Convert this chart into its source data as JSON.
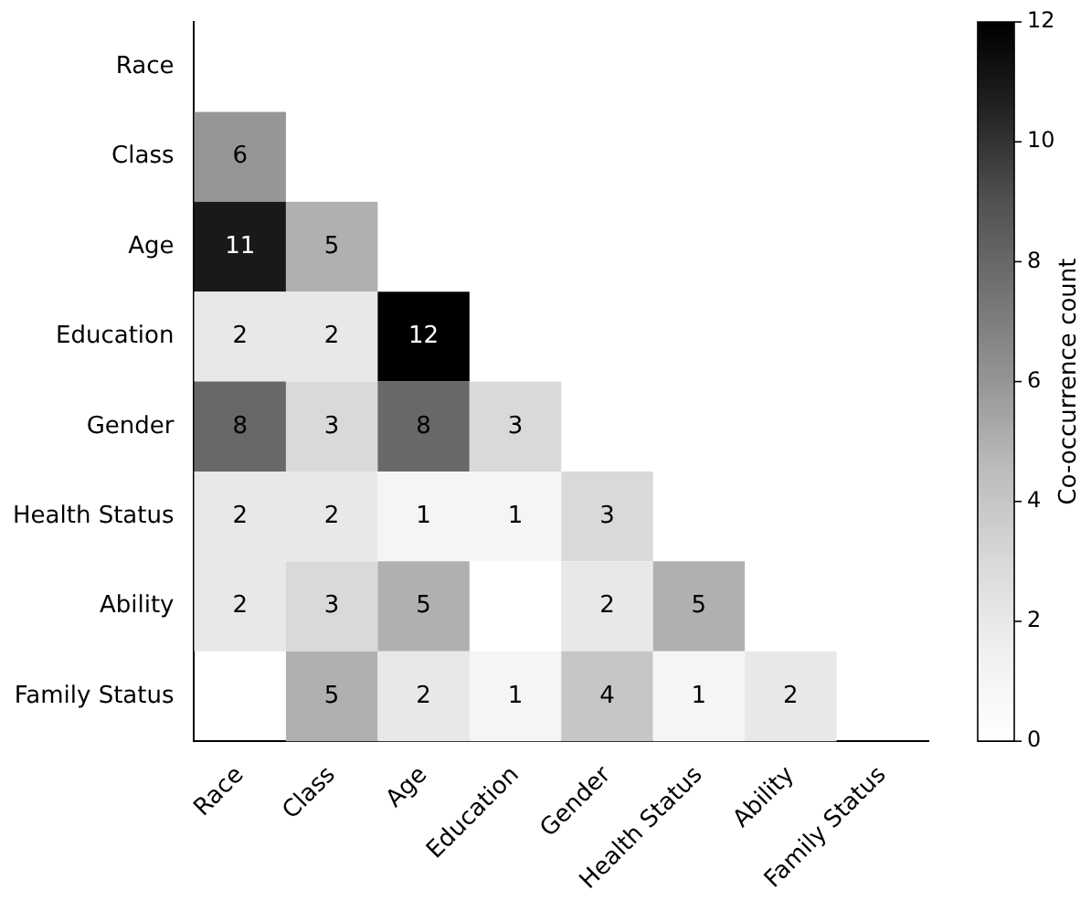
{
  "chart_data": {
    "type": "heatmap",
    "categories": [
      "Race",
      "Class",
      "Age",
      "Education",
      "Gender",
      "Health Status",
      "Ability",
      "Family Status"
    ],
    "y_categories": [
      "Race",
      "Class",
      "Age",
      "Education",
      "Gender",
      "Health Status",
      "Ability",
      "Family Status"
    ],
    "cells": [
      [
        null,
        null,
        null,
        null,
        null,
        null,
        null,
        null
      ],
      [
        6,
        null,
        null,
        null,
        null,
        null,
        null,
        null
      ],
      [
        11,
        5,
        null,
        null,
        null,
        null,
        null,
        null
      ],
      [
        2,
        2,
        12,
        null,
        null,
        null,
        null,
        null
      ],
      [
        8,
        3,
        8,
        3,
        null,
        null,
        null,
        null
      ],
      [
        2,
        2,
        1,
        1,
        3,
        null,
        null,
        null
      ],
      [
        2,
        3,
        5,
        null,
        2,
        5,
        null,
        null
      ],
      [
        null,
        5,
        2,
        1,
        4,
        1,
        2,
        null
      ]
    ],
    "data_labels": true,
    "clim": [
      0,
      12
    ],
    "cticks": [
      0,
      2,
      4,
      6,
      8,
      10,
      12
    ],
    "clabel": "Co-occurrence count"
  }
}
